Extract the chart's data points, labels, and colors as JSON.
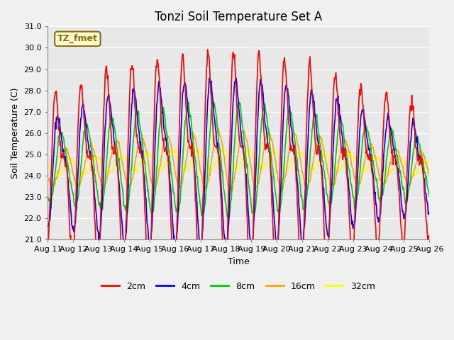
{
  "title": "Tonzi Soil Temperature Set A",
  "xlabel": "Time",
  "ylabel": "Soil Temperature (C)",
  "ylim": [
    21.0,
    31.0
  ],
  "yticks": [
    21.0,
    22.0,
    23.0,
    24.0,
    25.0,
    26.0,
    27.0,
    28.0,
    29.0,
    30.0,
    31.0
  ],
  "xtick_labels": [
    "Aug 11",
    "Aug 12",
    "Aug 13",
    "Aug 14",
    "Aug 15",
    "Aug 16",
    "Aug 17",
    "Aug 18",
    "Aug 19",
    "Aug 20",
    "Aug 21",
    "Aug 22",
    "Aug 23",
    "Aug 24",
    "Aug 25",
    "Aug 26"
  ],
  "n_days": 15,
  "points_per_day": 48,
  "annotation_text": "TZ_fmet",
  "annotation_color": "#8B6914",
  "annotation_bg": "#FFFFCC",
  "line_colors": {
    "2cm": "#FF0000",
    "4cm": "#0000FF",
    "8cm": "#00CC00",
    "16cm": "#FFA500",
    "32cm": "#FFFF00"
  },
  "line_widths": {
    "2cm": 1.2,
    "4cm": 1.2,
    "8cm": 1.2,
    "16cm": 1.2,
    "32cm": 1.2
  },
  "plot_bg": "#E8E8E8",
  "grid_color": "#FFFFFF",
  "title_fontsize": 12,
  "axis_label_fontsize": 9,
  "tick_fontsize": 8,
  "figwidth": 6.4,
  "figheight": 4.8,
  "dpi": 100
}
